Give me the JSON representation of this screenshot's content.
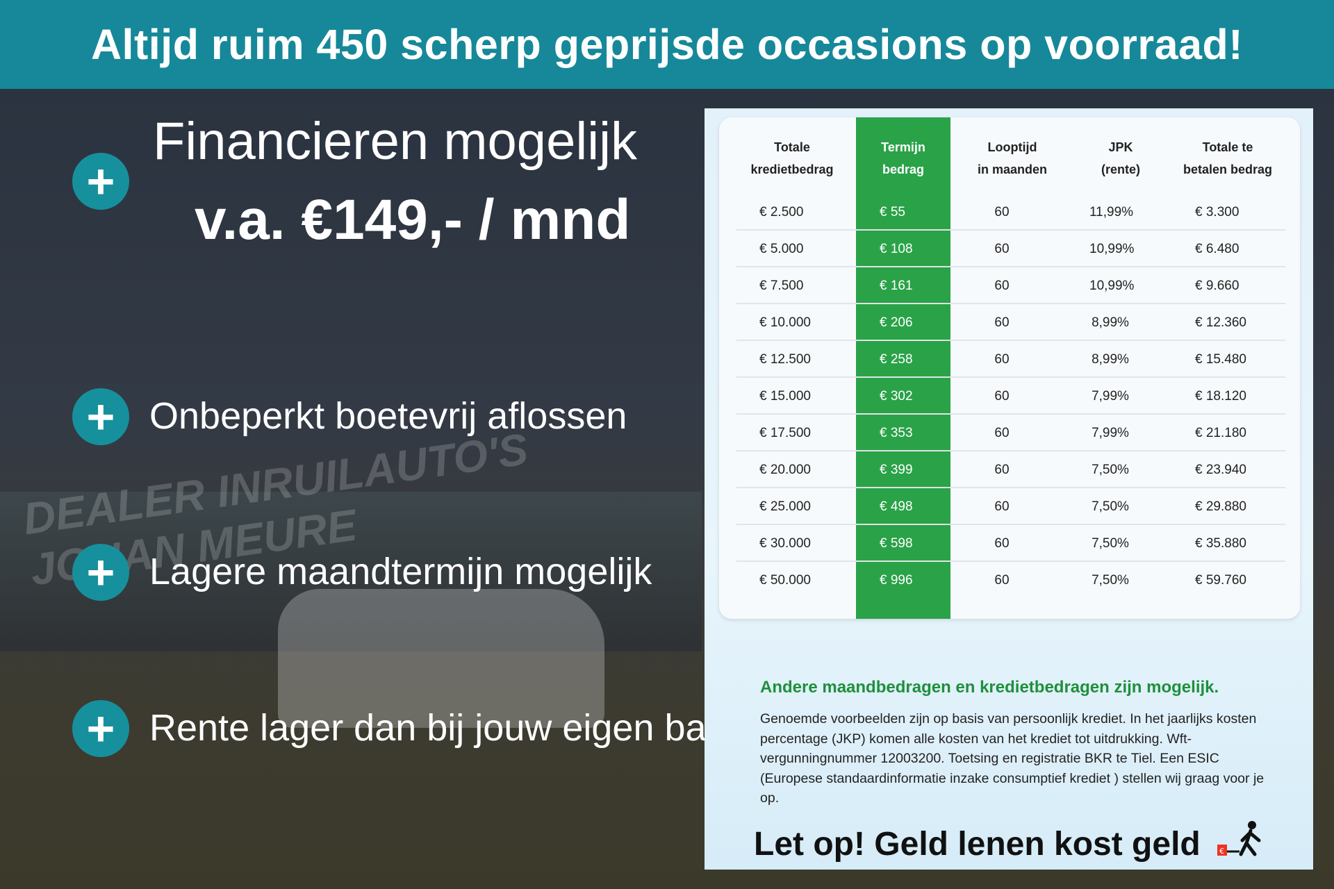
{
  "banner": {
    "title": "Altijd ruim 450 scherp geprijsde occasions op voorraad!"
  },
  "hero": {
    "line1": "Financieren mogelijk",
    "line2": "v.a. €149,- / mnd"
  },
  "features": [
    "Onbeperkt boetevrij aflossen",
    "Lagere maandtermijn mogelijk",
    "Rente lager dan bij jouw eigen bank"
  ],
  "background_sign": "DEALER INRUILAUTO'S JOHAN MEURE",
  "table": {
    "headers": [
      [
        "Totale",
        "kredietbedrag"
      ],
      [
        "Termijn",
        "bedrag"
      ],
      [
        "Looptijd",
        "in maanden"
      ],
      [
        "JPK",
        "(rente)"
      ],
      [
        "Totale te",
        "betalen bedrag"
      ]
    ],
    "rows": [
      [
        "€ 2.500",
        "€ 55",
        "60",
        "11,99%",
        "€ 3.300"
      ],
      [
        "€ 5.000",
        "€ 108",
        "60",
        "10,99%",
        "€ 6.480"
      ],
      [
        "€ 7.500",
        "€ 161",
        "60",
        "10,99%",
        "€ 9.660"
      ],
      [
        "€ 10.000",
        "€ 206",
        "60",
        "8,99%",
        "€ 12.360"
      ],
      [
        "€ 12.500",
        "€ 258",
        "60",
        "8,99%",
        "€ 15.480"
      ],
      [
        "€ 15.000",
        "€ 302",
        "60",
        "7,99%",
        "€ 18.120"
      ],
      [
        "€ 17.500",
        "€ 353",
        "60",
        "7,99%",
        "€ 21.180"
      ],
      [
        "€ 20.000",
        "€ 399",
        "60",
        "7,50%",
        "€ 23.940"
      ],
      [
        "€ 25.000",
        "€ 498",
        "60",
        "7,50%",
        "€ 29.880"
      ],
      [
        "€ 30.000",
        "€ 598",
        "60",
        "7,50%",
        "€ 35.880"
      ],
      [
        "€ 50.000",
        "€ 996",
        "60",
        "7,50%",
        "€ 59.760"
      ]
    ]
  },
  "other_amounts": "Andere maandbedragen en kredietbedragen zijn mogelijk.",
  "disclaimer": "Genoemde voorbeelden zijn op basis van persoonlijk krediet. In het jaarlijks kosten percentage (JKP) komen alle kosten van het krediet tot uitdrukking. Wft-vergunningnummer 12003200. Toetsing en registratie BKR te Tiel. Een ESIC (Europese standaardinformatie inzake consumptief krediet ) stellen wij graag voor je op.",
  "warning": "Let op! Geld lenen kost geld",
  "colors": {
    "banner": "#16889a",
    "accent_green": "#2aa248",
    "plus": "#17909d"
  }
}
